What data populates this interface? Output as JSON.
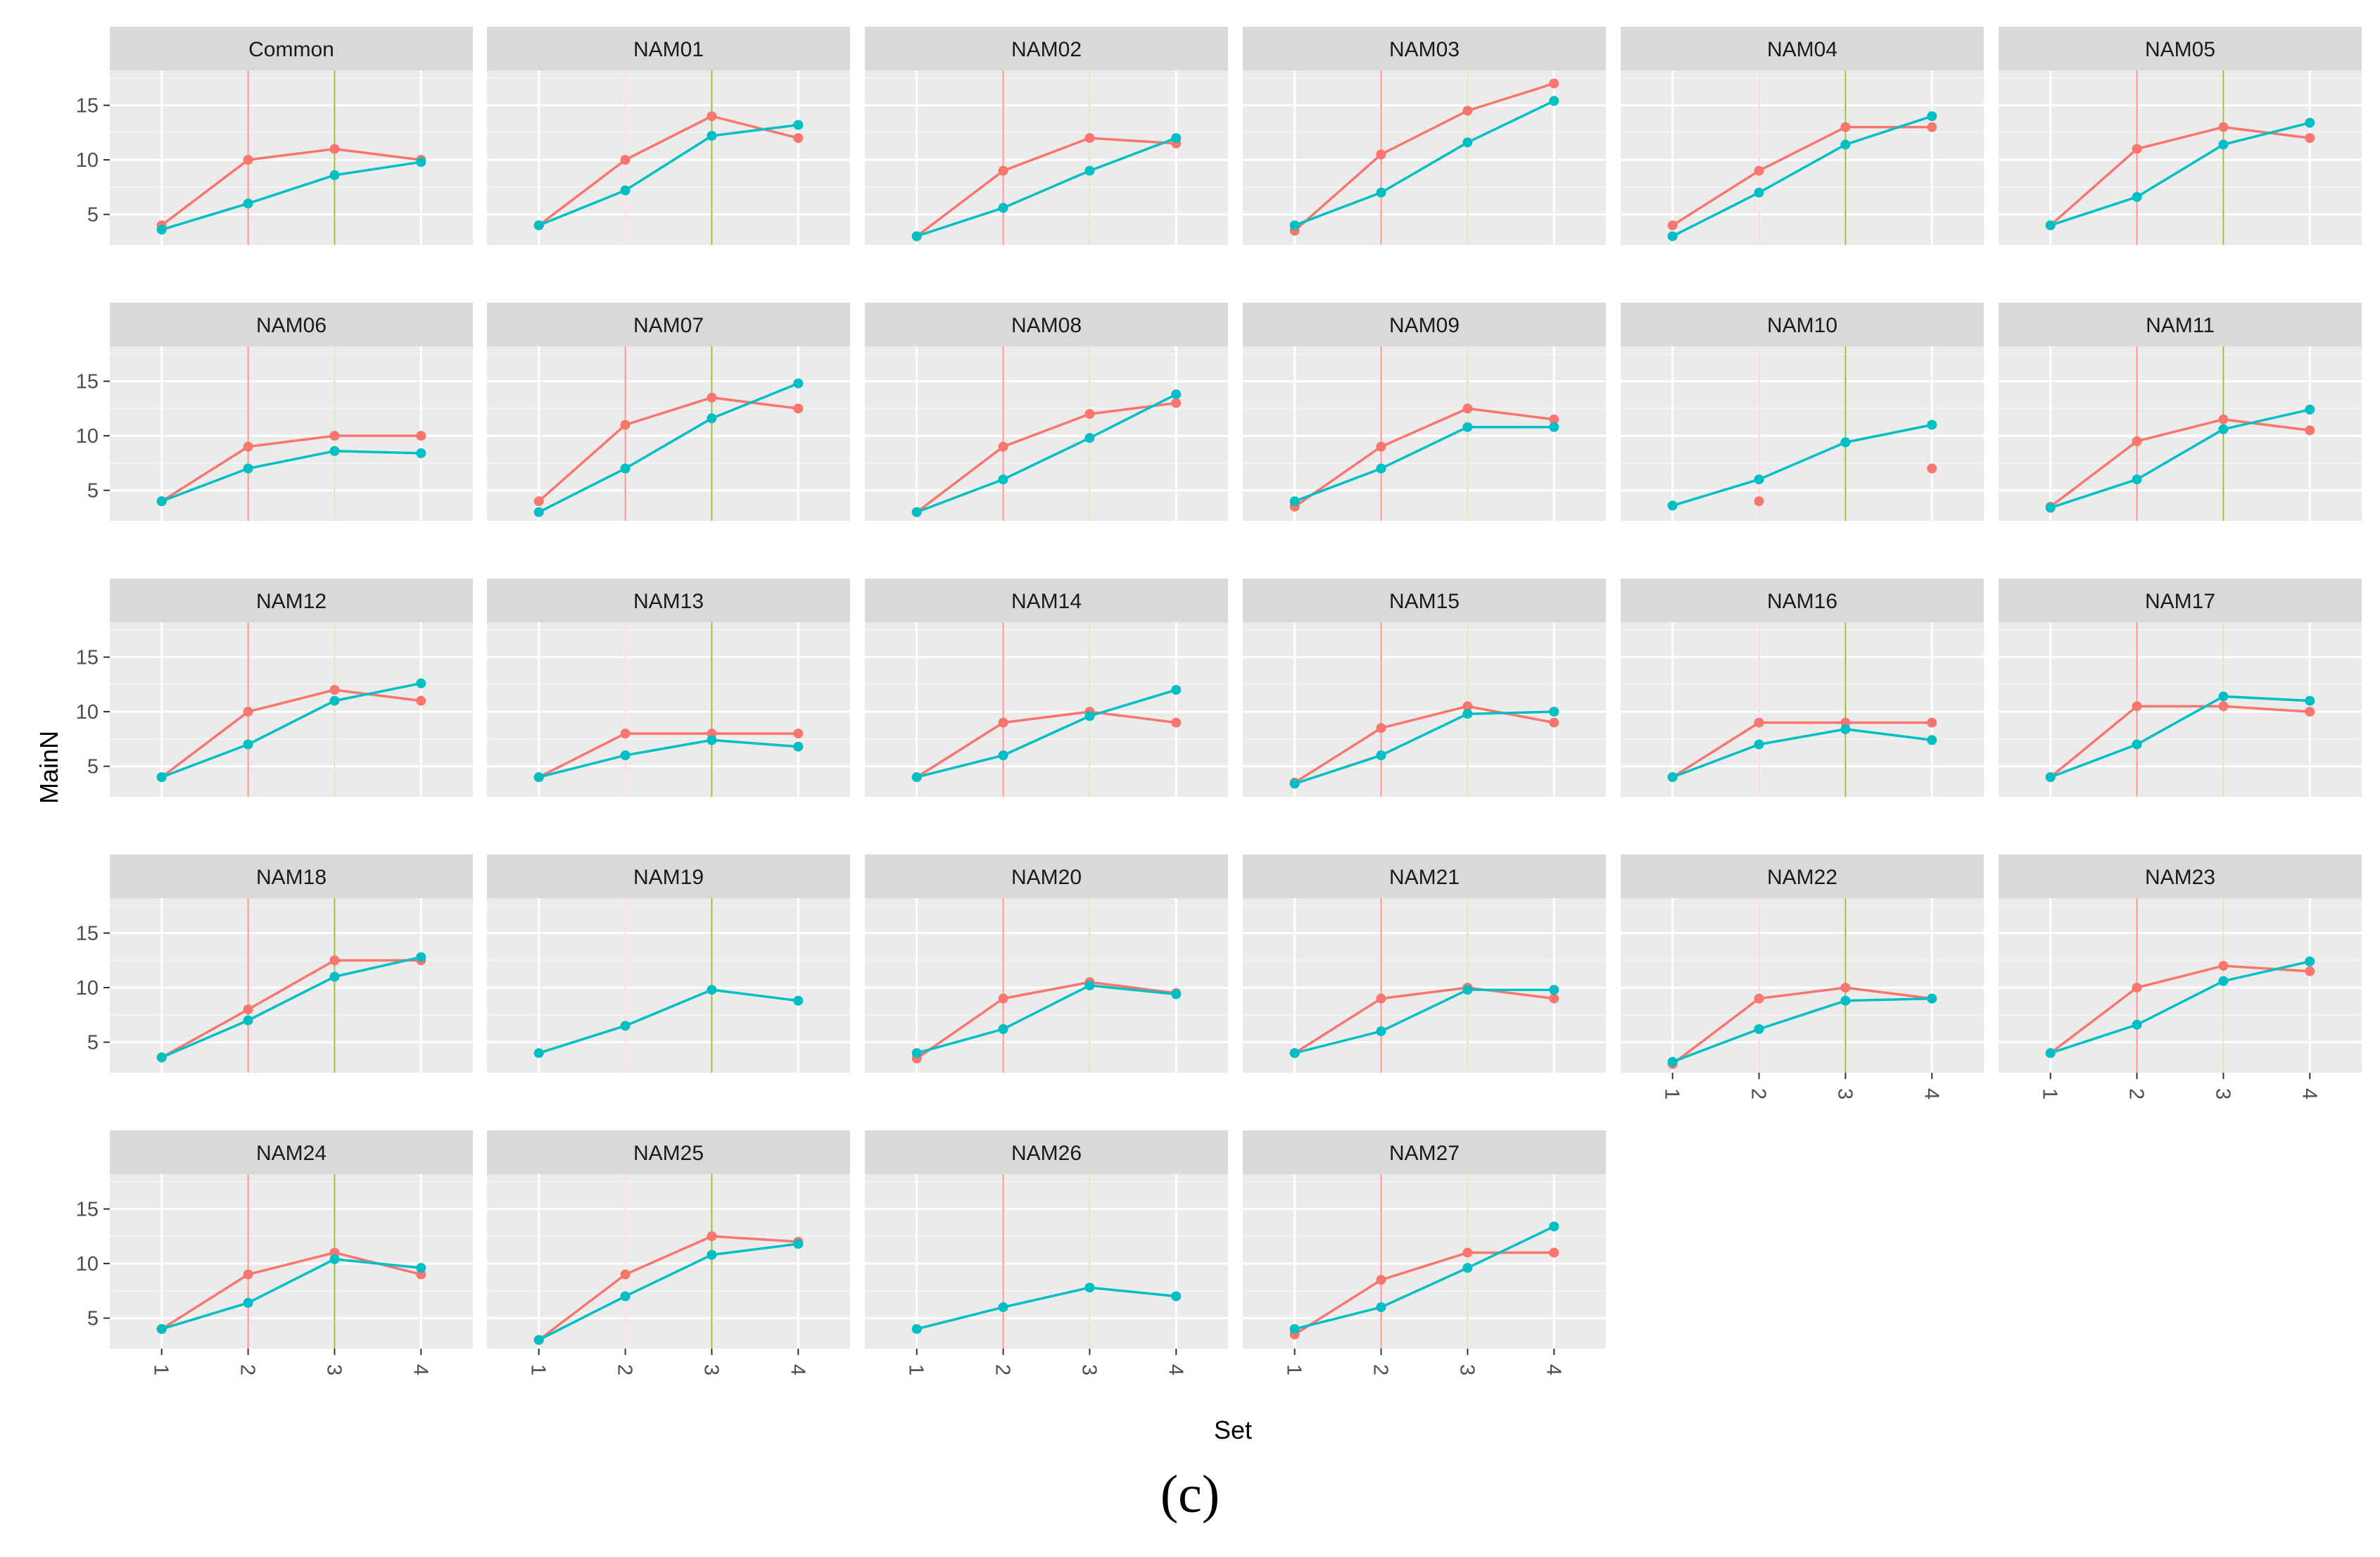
{
  "chart_data": {
    "type": "line",
    "layout": "faceted small multiples",
    "xlabel": "Set",
    "ylabel": "MainN",
    "x": [
      1,
      2,
      3,
      4
    ],
    "x_tick_labels": [
      "1",
      "2",
      "3",
      "4"
    ],
    "y_ticks": [
      5,
      10,
      15
    ],
    "ylim": [
      2.2,
      18.2
    ],
    "xlim": [
      0.4,
      4.6
    ],
    "grid": true,
    "legend": "none",
    "series_colors": {
      "red": "#F8766D",
      "teal": "#00BFC4"
    },
    "vline_colors": {
      "at_2": "#F8766D",
      "at_3": "#7CAE00"
    },
    "panels": [
      {
        "title": "Common",
        "red": [
          4,
          10,
          11,
          10
        ],
        "teal": [
          3.6,
          6,
          8.6,
          9.8
        ],
        "vline_alpha": [
          0.8,
          0.8
        ]
      },
      {
        "title": "NAM01",
        "red": [
          4,
          10,
          14,
          12
        ],
        "teal": [
          4,
          7.2,
          12.2,
          13.2
        ],
        "vline_alpha": [
          0.3,
          0.8
        ]
      },
      {
        "title": "NAM02",
        "red": [
          3,
          9,
          12,
          11.5
        ],
        "teal": [
          3,
          5.6,
          9,
          12
        ],
        "vline_alpha": [
          0.8,
          0.3
        ]
      },
      {
        "title": "NAM03",
        "red": [
          3.5,
          10.5,
          14.5,
          17
        ],
        "teal": [
          4,
          7,
          11.6,
          15.4
        ],
        "vline_alpha": [
          0.8,
          0.3
        ]
      },
      {
        "title": "NAM04",
        "red": [
          4,
          9,
          13,
          13
        ],
        "teal": [
          3,
          7,
          11.4,
          14
        ],
        "vline_alpha": [
          0.3,
          0.8
        ]
      },
      {
        "title": "NAM05",
        "red": [
          4,
          11,
          13,
          12
        ],
        "teal": [
          4,
          6.6,
          11.4,
          13.4
        ],
        "vline_alpha": [
          0.8,
          0.8
        ]
      },
      {
        "title": "NAM06",
        "red": [
          4,
          9,
          10,
          10
        ],
        "teal": [
          4,
          7,
          8.6,
          8.4
        ],
        "vline_alpha": [
          0.8,
          0.3
        ]
      },
      {
        "title": "NAM07",
        "red": [
          4,
          11,
          13.5,
          12.5
        ],
        "teal": [
          3,
          7,
          11.6,
          14.8
        ],
        "vline_alpha": [
          0.8,
          0.8
        ]
      },
      {
        "title": "NAM08",
        "red": [
          3,
          9,
          12,
          13
        ],
        "teal": [
          3,
          6,
          9.8,
          13.8
        ],
        "vline_alpha": [
          0.8,
          0.3
        ]
      },
      {
        "title": "NAM09",
        "red": [
          3.5,
          9,
          12.5,
          11.5
        ],
        "teal": [
          4,
          7,
          10.8,
          10.8
        ],
        "vline_alpha": [
          0.8,
          0.3
        ]
      },
      {
        "title": "NAM10",
        "red": [
          null,
          4,
          null,
          7
        ],
        "teal": [
          3.6,
          6,
          9.4,
          11
        ],
        "vline_alpha": [
          0.3,
          0.8
        ]
      },
      {
        "title": "NAM11",
        "red": [
          3.5,
          9.5,
          11.5,
          10.5
        ],
        "teal": [
          3.4,
          6,
          10.6,
          12.4
        ],
        "vline_alpha": [
          0.8,
          0.8
        ]
      },
      {
        "title": "NAM12",
        "red": [
          4,
          10,
          12,
          11
        ],
        "teal": [
          4,
          7,
          11,
          12.6
        ],
        "vline_alpha": [
          0.8,
          0.3
        ]
      },
      {
        "title": "NAM13",
        "red": [
          4,
          8,
          8,
          8
        ],
        "teal": [
          4,
          6,
          7.4,
          6.8
        ],
        "vline_alpha": [
          0.3,
          0.8
        ]
      },
      {
        "title": "NAM14",
        "red": [
          4,
          9,
          10,
          9
        ],
        "teal": [
          4,
          6,
          9.6,
          12
        ],
        "vline_alpha": [
          0.8,
          0.3
        ]
      },
      {
        "title": "NAM15",
        "red": [
          3.5,
          8.5,
          10.5,
          9
        ],
        "teal": [
          3.4,
          6,
          9.8,
          10
        ],
        "vline_alpha": [
          0.8,
          0.3
        ]
      },
      {
        "title": "NAM16",
        "red": [
          4,
          9,
          9,
          9
        ],
        "teal": [
          4,
          7,
          8.4,
          7.4
        ],
        "vline_alpha": [
          0.3,
          0.8
        ]
      },
      {
        "title": "NAM17",
        "red": [
          4,
          10.5,
          10.5,
          10
        ],
        "teal": [
          4,
          7,
          11.4,
          11
        ],
        "vline_alpha": [
          0.8,
          0.3
        ]
      },
      {
        "title": "NAM18",
        "red": [
          3.6,
          8,
          12.5,
          12.5
        ],
        "teal": [
          3.6,
          7,
          11,
          12.8
        ],
        "vline_alpha": [
          0.8,
          0.8
        ]
      },
      {
        "title": "NAM19",
        "red": [
          null,
          null,
          null,
          null
        ],
        "teal": [
          4,
          6.5,
          9.8,
          8.8
        ],
        "vline_alpha": [
          0.3,
          0.8
        ]
      },
      {
        "title": "NAM20",
        "red": [
          3.5,
          9,
          10.5,
          9.5
        ],
        "teal": [
          4,
          6.2,
          10.2,
          9.4
        ],
        "vline_alpha": [
          0.8,
          0.3
        ]
      },
      {
        "title": "NAM21",
        "red": [
          4,
          9,
          10,
          9
        ],
        "teal": [
          4,
          6,
          9.8,
          9.8
        ],
        "vline_alpha": [
          0.8,
          0.3
        ]
      },
      {
        "title": "NAM22",
        "red": [
          3,
          9,
          10,
          9
        ],
        "teal": [
          3.2,
          6.2,
          8.8,
          9
        ],
        "vline_alpha": [
          0.3,
          0.8
        ]
      },
      {
        "title": "NAM23",
        "red": [
          4,
          10,
          12,
          11.5
        ],
        "teal": [
          4,
          6.6,
          10.6,
          12.4
        ],
        "vline_alpha": [
          0.8,
          0.3
        ]
      },
      {
        "title": "NAM24",
        "red": [
          4,
          9,
          11,
          9
        ],
        "teal": [
          4,
          6.4,
          10.4,
          9.6
        ],
        "vline_alpha": [
          0.8,
          0.8
        ]
      },
      {
        "title": "NAM25",
        "red": [
          3,
          9,
          12.5,
          12
        ],
        "teal": [
          3,
          7,
          10.8,
          11.8
        ],
        "vline_alpha": [
          0.3,
          0.8
        ]
      },
      {
        "title": "NAM26",
        "red": [
          null,
          null,
          null,
          null
        ],
        "teal": [
          4,
          6,
          7.8,
          7
        ],
        "vline_alpha": [
          0.8,
          0.3
        ]
      },
      {
        "title": "NAM27",
        "red": [
          3.5,
          8.5,
          11,
          11
        ],
        "teal": [
          4,
          6,
          9.6,
          13.4
        ],
        "vline_alpha": [
          0.8,
          0.3
        ]
      }
    ]
  },
  "caption": "(c)"
}
